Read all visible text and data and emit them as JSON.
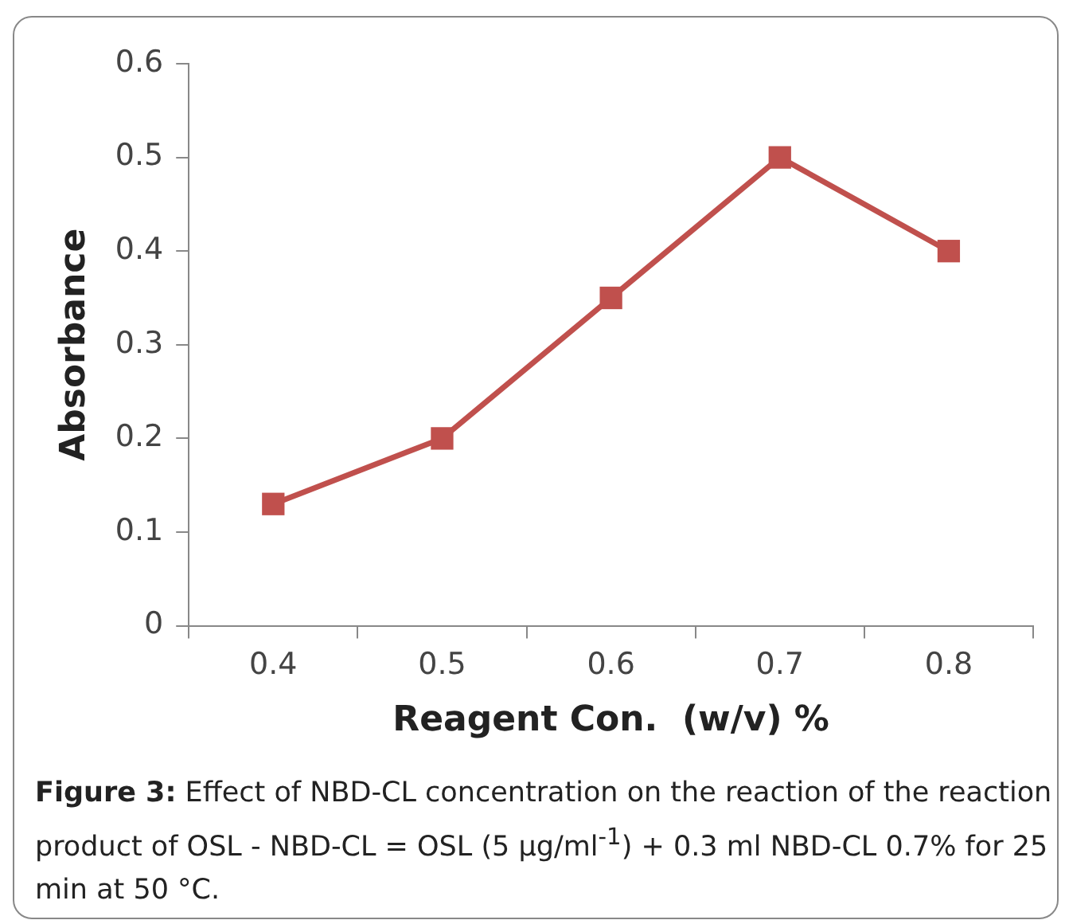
{
  "chart_data": {
    "type": "line",
    "xlabel": "Reagent Con.  (w/v) %",
    "ylabel": "Absorbance",
    "categories": [
      "0.4",
      "0.5",
      "0.6",
      "0.7",
      "0.8"
    ],
    "series": [
      {
        "color": "#c0504d",
        "values": [
          0.13,
          0.2,
          0.35,
          0.5,
          0.4
        ]
      }
    ],
    "ylim": [
      0,
      0.6
    ],
    "yticks": [
      {
        "value": 0,
        "label": "0"
      },
      0.1,
      0.2,
      0.3,
      0.4,
      0.5,
      0.6
    ],
    "grid": false,
    "legend": false,
    "marker": "square",
    "line_style": "solid",
    "annotations": [
      "Figure 3: Effect of NBD-CL concentration on the reaction of the reaction product of OSL - NBD-CL = OSL (5 µg/ml$^{-1}$) + 0.3 ml NBD-CL 0.7% for 25 min at 50 °C."
    ]
  }
}
